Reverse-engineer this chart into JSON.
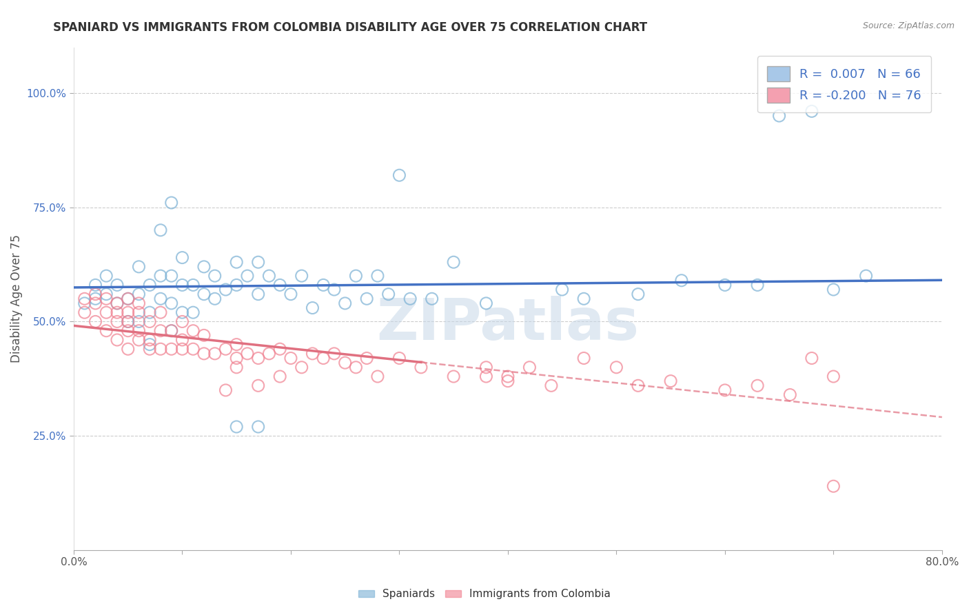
{
  "title": "SPANIARD VS IMMIGRANTS FROM COLOMBIA DISABILITY AGE OVER 75 CORRELATION CHART",
  "source": "Source: ZipAtlas.com",
  "ylabel": "Disability Age Over 75",
  "x_min": 0.0,
  "x_max": 0.8,
  "y_min": 0.0,
  "y_max": 1.1,
  "x_ticks": [
    0.0,
    0.1,
    0.2,
    0.3,
    0.4,
    0.5,
    0.6,
    0.7,
    0.8
  ],
  "x_tick_labels": [
    "0.0%",
    "",
    "",
    "",
    "",
    "",
    "",
    "",
    "80.0%"
  ],
  "y_ticks": [
    0.25,
    0.5,
    0.75,
    1.0
  ],
  "y_tick_labels": [
    "25.0%",
    "50.0%",
    "75.0%",
    "100.0%"
  ],
  "legend_entries": [
    {
      "label": "R =  0.007   N = 66",
      "color": "#a8c8e8"
    },
    {
      "label": "R = -0.200   N = 76",
      "color": "#f4a0b0"
    }
  ],
  "spaniards_color": "#7ab0d4",
  "colombia_color": "#f08090",
  "trend_blue_color": "#4472c4",
  "trend_pink_color": "#e07080",
  "trend_pink_solid_end": 0.32,
  "grid_color": "#cccccc",
  "watermark": "ZIPatlas",
  "watermark_color": "#c8d8e8",
  "background_color": "#ffffff",
  "spaniards_x": [
    0.01,
    0.02,
    0.02,
    0.03,
    0.03,
    0.04,
    0.04,
    0.05,
    0.05,
    0.06,
    0.06,
    0.06,
    0.07,
    0.07,
    0.07,
    0.08,
    0.08,
    0.08,
    0.09,
    0.09,
    0.09,
    0.09,
    0.1,
    0.1,
    0.1,
    0.11,
    0.11,
    0.12,
    0.12,
    0.13,
    0.13,
    0.14,
    0.15,
    0.15,
    0.16,
    0.17,
    0.17,
    0.18,
    0.19,
    0.2,
    0.21,
    0.22,
    0.23,
    0.24,
    0.25,
    0.26,
    0.27,
    0.28,
    0.29,
    0.3,
    0.31,
    0.33,
    0.35,
    0.38,
    0.15,
    0.17,
    0.45,
    0.47,
    0.52,
    0.56,
    0.6,
    0.63,
    0.65,
    0.68,
    0.7,
    0.73
  ],
  "spaniards_y": [
    0.54,
    0.55,
    0.58,
    0.56,
    0.6,
    0.54,
    0.58,
    0.5,
    0.55,
    0.5,
    0.56,
    0.62,
    0.45,
    0.52,
    0.58,
    0.55,
    0.6,
    0.7,
    0.48,
    0.54,
    0.6,
    0.76,
    0.52,
    0.58,
    0.64,
    0.52,
    0.58,
    0.56,
    0.62,
    0.55,
    0.6,
    0.57,
    0.58,
    0.63,
    0.6,
    0.63,
    0.56,
    0.6,
    0.58,
    0.56,
    0.6,
    0.53,
    0.58,
    0.57,
    0.54,
    0.6,
    0.55,
    0.6,
    0.56,
    0.82,
    0.55,
    0.55,
    0.63,
    0.54,
    0.27,
    0.27,
    0.57,
    0.55,
    0.56,
    0.59,
    0.58,
    0.58,
    0.95,
    0.96,
    0.57,
    0.6
  ],
  "colombia_x": [
    0.01,
    0.01,
    0.02,
    0.02,
    0.02,
    0.03,
    0.03,
    0.03,
    0.04,
    0.04,
    0.04,
    0.04,
    0.05,
    0.05,
    0.05,
    0.05,
    0.05,
    0.06,
    0.06,
    0.06,
    0.06,
    0.07,
    0.07,
    0.07,
    0.08,
    0.08,
    0.08,
    0.09,
    0.09,
    0.1,
    0.1,
    0.1,
    0.11,
    0.11,
    0.12,
    0.12,
    0.13,
    0.14,
    0.15,
    0.15,
    0.16,
    0.17,
    0.18,
    0.19,
    0.2,
    0.21,
    0.22,
    0.23,
    0.24,
    0.25,
    0.26,
    0.27,
    0.28,
    0.3,
    0.32,
    0.35,
    0.38,
    0.4,
    0.14,
    0.15,
    0.17,
    0.19,
    0.42,
    0.44,
    0.5,
    0.52,
    0.55,
    0.6,
    0.63,
    0.66,
    0.68,
    0.7,
    0.38,
    0.4,
    0.47,
    0.7
  ],
  "colombia_y": [
    0.52,
    0.55,
    0.5,
    0.54,
    0.56,
    0.48,
    0.52,
    0.55,
    0.46,
    0.5,
    0.52,
    0.54,
    0.44,
    0.48,
    0.5,
    0.52,
    0.55,
    0.46,
    0.48,
    0.52,
    0.54,
    0.44,
    0.46,
    0.5,
    0.44,
    0.48,
    0.52,
    0.44,
    0.48,
    0.44,
    0.46,
    0.5,
    0.44,
    0.48,
    0.43,
    0.47,
    0.43,
    0.44,
    0.42,
    0.45,
    0.43,
    0.42,
    0.43,
    0.44,
    0.42,
    0.4,
    0.43,
    0.42,
    0.43,
    0.41,
    0.4,
    0.42,
    0.38,
    0.42,
    0.4,
    0.38,
    0.4,
    0.38,
    0.35,
    0.4,
    0.36,
    0.38,
    0.4,
    0.36,
    0.4,
    0.36,
    0.37,
    0.35,
    0.36,
    0.34,
    0.42,
    0.38,
    0.38,
    0.37,
    0.42,
    0.14
  ]
}
